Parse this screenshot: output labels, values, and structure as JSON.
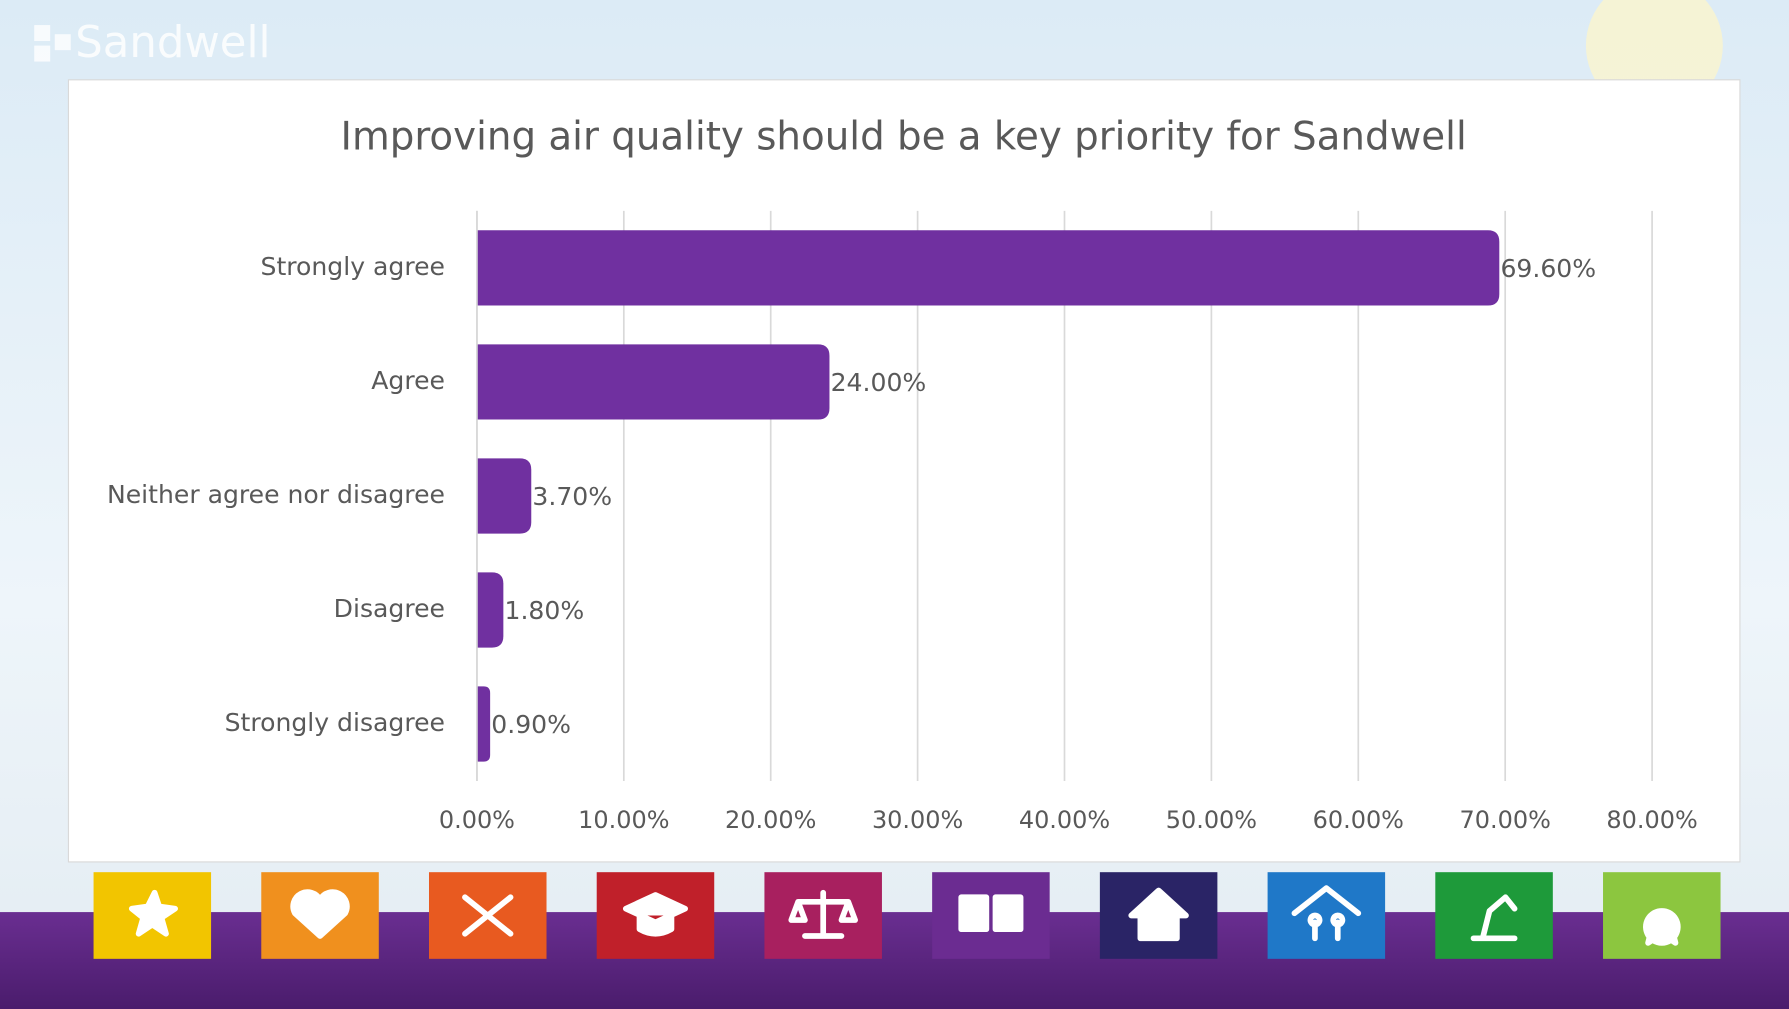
{
  "brand": "Sandwell",
  "chart_data": {
    "type": "bar",
    "orientation": "horizontal",
    "title": "Improving air quality should be a key priority for Sandwell",
    "categories": [
      "Strongly agree",
      "Agree",
      "Neither agree nor disagree",
      "Disagree",
      "Strongly disagree"
    ],
    "values": [
      69.6,
      24.0,
      3.7,
      1.8,
      0.9
    ],
    "value_labels": [
      "69.60%",
      "24.00%",
      "3.70%",
      "1.80%",
      "0.90%"
    ],
    "color": "#7030a0",
    "xlim": [
      0,
      80
    ],
    "xticks": [
      {
        "value": 0,
        "label": "0.00%"
      },
      {
        "value": 10,
        "label": "10.00%"
      },
      {
        "value": 20,
        "label": "20.00%"
      },
      {
        "value": 30,
        "label": "30.00%"
      },
      {
        "value": 40,
        "label": "40.00%"
      },
      {
        "value": 50,
        "label": "50.00%"
      },
      {
        "value": 60,
        "label": "60.00%"
      },
      {
        "value": 70,
        "label": "70.00%"
      },
      {
        "value": 80,
        "label": "80.00%"
      }
    ],
    "grid": true
  }
}
